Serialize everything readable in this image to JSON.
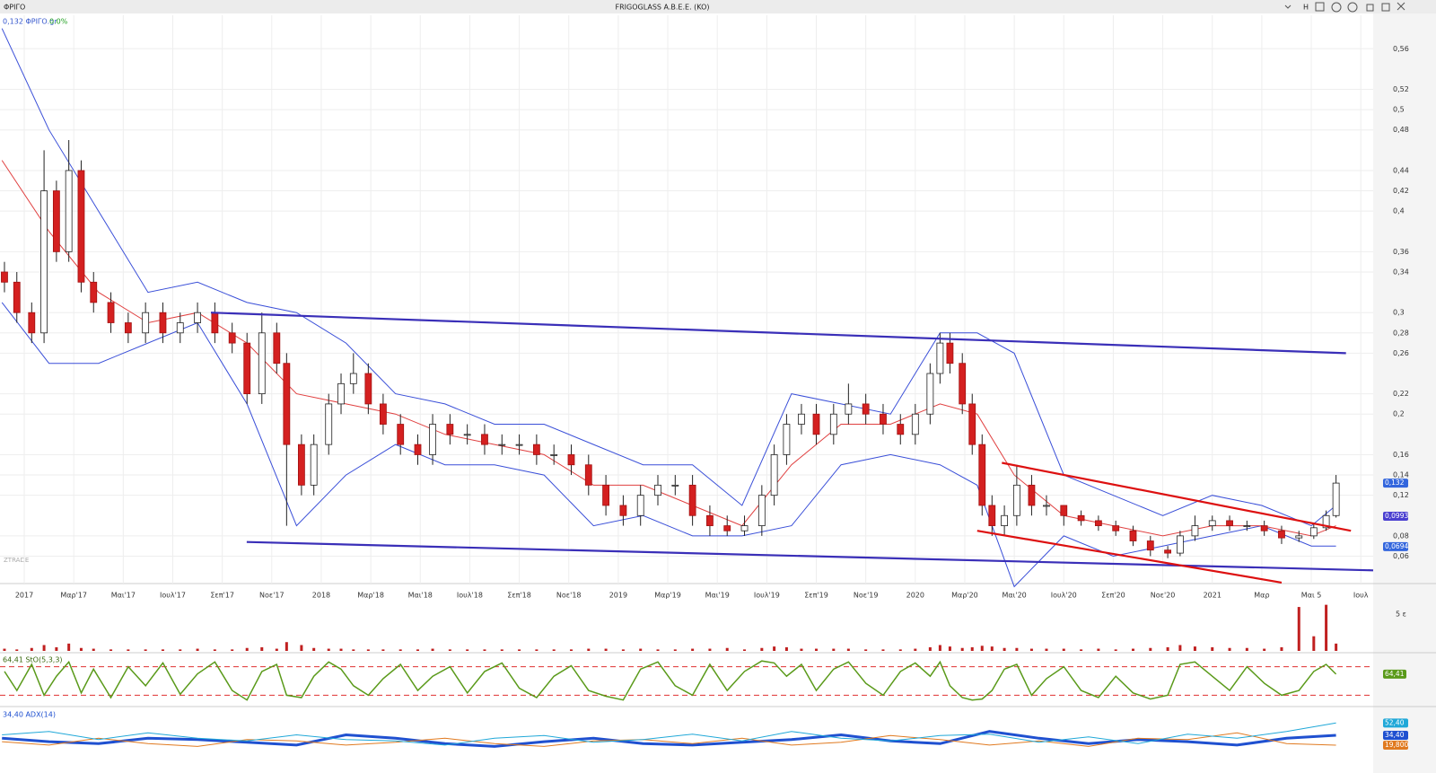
{
  "window": {
    "symbol": "ΦΡΙΓΟ",
    "title": "FRIGOGLASS A.B.E.E. (KO)",
    "watermark": "ZTRADE",
    "button": "H"
  },
  "chart_data": [
    {
      "type": "candlestick",
      "legend": "0,132 ΦΡΙΓΟ.gr",
      "change": "0.0%",
      "x": [
        -0.8,
        -0.3,
        0.3,
        0.8,
        1.3,
        1.8,
        2.3,
        2.8,
        3.5,
        4.2,
        4.9,
        5.6,
        6.3,
        7.0,
        7.7,
        8.4,
        9.0,
        9.6,
        10.2,
        10.6,
        11.2,
        11.7,
        12.3,
        12.8,
        13.3,
        13.9,
        14.5,
        15.2,
        15.9,
        16.5,
        17.2,
        17.9,
        18.6,
        19.3,
        20.0,
        20.7,
        21.4,
        22.1,
        22.8,
        23.5,
        24.2,
        24.9,
        25.6,
        26.3,
        27.0,
        27.7,
        28.4,
        29.1,
        29.8,
        30.3,
        30.8,
        31.4,
        32.0,
        32.7,
        33.3,
        34.0,
        34.7,
        35.4,
        36.0,
        36.6,
        37.0,
        37.4,
        37.9,
        38.3,
        38.7,
        39.1,
        39.6,
        40.1,
        40.7,
        41.3,
        42.0,
        42.7,
        43.4,
        44.1,
        44.8,
        45.5,
        46.2,
        46.7,
        47.3,
        48.0,
        48.7,
        49.4,
        50.1,
        50.8,
        51.5,
        52.1,
        52.6,
        53.0
      ],
      "open": [
        0.34,
        0.33,
        0.3,
        0.28,
        0.42,
        0.36,
        0.44,
        0.33,
        0.31,
        0.29,
        0.28,
        0.3,
        0.28,
        0.29,
        0.3,
        0.28,
        0.27,
        0.22,
        0.28,
        0.25,
        0.17,
        0.13,
        0.17,
        0.21,
        0.23,
        0.24,
        0.21,
        0.19,
        0.17,
        0.16,
        0.19,
        0.18,
        0.18,
        0.17,
        0.17,
        0.17,
        0.16,
        0.16,
        0.15,
        0.13,
        0.11,
        0.1,
        0.12,
        0.13,
        0.13,
        0.1,
        0.09,
        0.085,
        0.09,
        0.12,
        0.16,
        0.19,
        0.2,
        0.18,
        0.2,
        0.21,
        0.2,
        0.19,
        0.18,
        0.2,
        0.24,
        0.27,
        0.25,
        0.21,
        0.17,
        0.11,
        0.09,
        0.1,
        0.13,
        0.11,
        0.11,
        0.1,
        0.095,
        0.09,
        0.085,
        0.075,
        0.066,
        0.063,
        0.08,
        0.09,
        0.095,
        0.09,
        0.09,
        0.085,
        0.078,
        0.08,
        0.088,
        0.1
      ],
      "high": [
        0.35,
        0.34,
        0.31,
        0.46,
        0.43,
        0.47,
        0.45,
        0.34,
        0.32,
        0.3,
        0.31,
        0.31,
        0.3,
        0.31,
        0.31,
        0.29,
        0.28,
        0.3,
        0.29,
        0.26,
        0.18,
        0.18,
        0.22,
        0.24,
        0.26,
        0.25,
        0.22,
        0.2,
        0.18,
        0.2,
        0.2,
        0.19,
        0.19,
        0.18,
        0.18,
        0.18,
        0.17,
        0.17,
        0.16,
        0.14,
        0.12,
        0.13,
        0.14,
        0.14,
        0.14,
        0.11,
        0.1,
        0.1,
        0.13,
        0.17,
        0.2,
        0.21,
        0.21,
        0.21,
        0.23,
        0.22,
        0.21,
        0.2,
        0.21,
        0.25,
        0.28,
        0.28,
        0.26,
        0.22,
        0.18,
        0.12,
        0.11,
        0.15,
        0.14,
        0.12,
        0.11,
        0.105,
        0.1,
        0.095,
        0.09,
        0.08,
        0.07,
        0.085,
        0.1,
        0.1,
        0.1,
        0.095,
        0.095,
        0.09,
        0.085,
        0.092,
        0.105,
        0.14
      ],
      "low": [
        0.32,
        0.29,
        0.27,
        0.27,
        0.35,
        0.35,
        0.32,
        0.3,
        0.28,
        0.27,
        0.27,
        0.27,
        0.27,
        0.28,
        0.27,
        0.26,
        0.21,
        0.21,
        0.24,
        0.09,
        0.12,
        0.12,
        0.16,
        0.2,
        0.22,
        0.2,
        0.18,
        0.16,
        0.15,
        0.15,
        0.17,
        0.17,
        0.16,
        0.16,
        0.16,
        0.15,
        0.15,
        0.14,
        0.12,
        0.1,
        0.09,
        0.09,
        0.11,
        0.12,
        0.09,
        0.08,
        0.08,
        0.08,
        0.08,
        0.11,
        0.15,
        0.18,
        0.17,
        0.17,
        0.19,
        0.19,
        0.18,
        0.17,
        0.17,
        0.19,
        0.23,
        0.24,
        0.2,
        0.16,
        0.1,
        0.08,
        0.08,
        0.09,
        0.1,
        0.1,
        0.09,
        0.09,
        0.085,
        0.08,
        0.07,
        0.06,
        0.058,
        0.06,
        0.075,
        0.085,
        0.085,
        0.085,
        0.08,
        0.072,
        0.074,
        0.077,
        0.085,
        0.098
      ],
      "close": [
        0.33,
        0.3,
        0.28,
        0.42,
        0.36,
        0.44,
        0.33,
        0.31,
        0.29,
        0.28,
        0.3,
        0.28,
        0.29,
        0.3,
        0.28,
        0.27,
        0.22,
        0.28,
        0.25,
        0.17,
        0.13,
        0.17,
        0.21,
        0.23,
        0.24,
        0.21,
        0.19,
        0.17,
        0.16,
        0.19,
        0.18,
        0.18,
        0.17,
        0.17,
        0.17,
        0.16,
        0.16,
        0.15,
        0.13,
        0.11,
        0.1,
        0.12,
        0.13,
        0.13,
        0.1,
        0.09,
        0.085,
        0.09,
        0.12,
        0.16,
        0.19,
        0.2,
        0.18,
        0.2,
        0.21,
        0.2,
        0.19,
        0.18,
        0.2,
        0.24,
        0.27,
        0.25,
        0.21,
        0.17,
        0.11,
        0.09,
        0.1,
        0.13,
        0.11,
        0.11,
        0.1,
        0.095,
        0.09,
        0.085,
        0.075,
        0.066,
        0.063,
        0.08,
        0.09,
        0.095,
        0.09,
        0.09,
        0.085,
        0.078,
        0.08,
        0.088,
        0.1,
        0.132
      ],
      "up_color": "#ffffff",
      "down_color": "#d42020",
      "xlim": [
        -0.98,
        54.5
      ],
      "xticks": [
        {
          "value": 0,
          "label": "2017"
        },
        {
          "value": 2,
          "label": "Μαρ'17"
        },
        {
          "value": 4,
          "label": "Μαι'17"
        },
        {
          "value": 6,
          "label": "Ιουλ'17"
        },
        {
          "value": 8,
          "label": "Σεπ'17"
        },
        {
          "value": 10,
          "label": "Νοε'17"
        },
        {
          "value": 12,
          "label": "2018"
        },
        {
          "value": 14,
          "label": "Μαρ'18"
        },
        {
          "value": 16,
          "label": "Μαι'18"
        },
        {
          "value": 18,
          "label": "Ιουλ'18"
        },
        {
          "value": 20,
          "label": "Σεπ'18"
        },
        {
          "value": 22,
          "label": "Νοε'18"
        },
        {
          "value": 24,
          "label": "2019"
        },
        {
          "value": 26,
          "label": "Μαρ'19"
        },
        {
          "value": 28,
          "label": "Μαι'19"
        },
        {
          "value": 30,
          "label": "Ιουλ'19"
        },
        {
          "value": 32,
          "label": "Σεπ'19"
        },
        {
          "value": 34,
          "label": "Νοε'19"
        },
        {
          "value": 36,
          "label": "2020"
        },
        {
          "value": 38,
          "label": "Μαρ'20"
        },
        {
          "value": 40,
          "label": "Μαι'20"
        },
        {
          "value": 42,
          "label": "Ιουλ'20"
        },
        {
          "value": 44,
          "label": "Σεπ'20"
        },
        {
          "value": 46,
          "label": "Νοε'20"
        },
        {
          "value": 48,
          "label": "2021"
        },
        {
          "value": 50,
          "label": "Μαρ"
        },
        {
          "value": 52,
          "label": "Μαι 5"
        },
        {
          "value": 54,
          "label": "Ιουλ"
        }
      ],
      "ylim": [
        0.033,
        0.593
      ],
      "yticks": [
        {
          "value": 0.06,
          "label": "0,06"
        },
        {
          "value": 0.08,
          "label": "0,08"
        },
        {
          "value": 0.12,
          "label": "0,12"
        },
        {
          "value": 0.14,
          "label": "0,14"
        },
        {
          "value": 0.16,
          "label": "0,16"
        },
        {
          "value": 0.2,
          "label": "0,2"
        },
        {
          "value": 0.22,
          "label": "0,22"
        },
        {
          "value": 0.26,
          "label": "0,26"
        },
        {
          "value": 0.28,
          "label": "0,28"
        },
        {
          "value": 0.3,
          "label": "0,3"
        },
        {
          "value": 0.34,
          "label": "0,34"
        },
        {
          "value": 0.36,
          "label": "0,36"
        },
        {
          "value": 0.4,
          "label": "0,4"
        },
        {
          "value": 0.42,
          "label": "0,42"
        },
        {
          "value": 0.44,
          "label": "0,44"
        },
        {
          "value": 0.48,
          "label": "0,48"
        },
        {
          "value": 0.5,
          "label": "0,5"
        },
        {
          "value": 0.52,
          "label": "0,52"
        },
        {
          "value": 0.56,
          "label": "0,56"
        }
      ],
      "grid": true,
      "bands": {
        "x": [
          -0.9,
          1,
          3,
          5,
          7,
          9,
          11,
          13,
          15,
          17,
          19,
          21,
          23,
          25,
          27,
          29,
          31,
          33,
          35,
          37,
          38.5,
          40,
          42,
          44,
          46,
          48,
          50,
          52,
          53
        ],
        "upper": [
          0.58,
          0.48,
          0.4,
          0.32,
          0.33,
          0.31,
          0.3,
          0.27,
          0.22,
          0.21,
          0.19,
          0.19,
          0.17,
          0.15,
          0.15,
          0.11,
          0.22,
          0.21,
          0.2,
          0.28,
          0.28,
          0.26,
          0.14,
          0.12,
          0.1,
          0.12,
          0.11,
          0.09,
          0.11
        ],
        "middle": [
          0.45,
          0.38,
          0.32,
          0.29,
          0.3,
          0.27,
          0.22,
          0.21,
          0.2,
          0.18,
          0.17,
          0.16,
          0.13,
          0.13,
          0.11,
          0.09,
          0.15,
          0.19,
          0.19,
          0.21,
          0.2,
          0.14,
          0.1,
          0.09,
          0.08,
          0.09,
          0.09,
          0.08,
          0.09
        ],
        "lower": [
          0.31,
          0.25,
          0.25,
          0.27,
          0.29,
          0.21,
          0.09,
          0.14,
          0.17,
          0.15,
          0.15,
          0.14,
          0.09,
          0.1,
          0.08,
          0.08,
          0.09,
          0.15,
          0.16,
          0.15,
          0.13,
          0.03,
          0.08,
          0.06,
          0.07,
          0.08,
          0.09,
          0.07,
          0.07
        ],
        "band_color": "#3a4fd8",
        "middle_color": "#e04040"
      },
      "trendlines": [
        {
          "color": "#3a2fb8",
          "x": [
            7.54,
            53.4
          ],
          "y": [
            0.3,
            0.26
          ]
        },
        {
          "color": "#3a2fb8",
          "x": [
            8.99,
            54.5
          ],
          "y": [
            0.074,
            0.046
          ]
        },
        {
          "color": "#dd1010",
          "x": [
            39.5,
            53.6
          ],
          "y": [
            0.152,
            0.085
          ]
        },
        {
          "color": "#dd1010",
          "x": [
            38.5,
            50.8
          ],
          "y": [
            0.085,
            0.034
          ]
        }
      ],
      "price_labels": [
        {
          "value": 0.132,
          "label": "0,132",
          "color": "#3366dd"
        },
        {
          "value": 0.0993,
          "label": "0,0993",
          "color": "#4a3fd0"
        },
        {
          "value": 0.0694,
          "label": "0,0694",
          "color": "#3366dd"
        }
      ]
    },
    {
      "type": "bar",
      "color": "#c02020",
      "values": [
        0.3,
        0.2,
        0.4,
        0.8,
        0.5,
        1.0,
        0.4,
        0.3,
        0.2,
        0.2,
        0.2,
        0.2,
        0.2,
        0.3,
        0.2,
        0.2,
        0.4,
        0.5,
        0.3,
        1.2,
        0.8,
        0.4,
        0.3,
        0.3,
        0.2,
        0.2,
        0.2,
        0.2,
        0.2,
        0.3,
        0.2,
        0.2,
        0.2,
        0.2,
        0.2,
        0.2,
        0.2,
        0.2,
        0.3,
        0.3,
        0.2,
        0.3,
        0.2,
        0.2,
        0.3,
        0.3,
        0.4,
        0.2,
        0.4,
        0.6,
        0.5,
        0.3,
        0.3,
        0.3,
        0.3,
        0.2,
        0.2,
        0.2,
        0.3,
        0.5,
        0.8,
        0.6,
        0.4,
        0.5,
        0.7,
        0.6,
        0.4,
        0.4,
        0.3,
        0.3,
        0.3,
        0.2,
        0.3,
        0.2,
        0.3,
        0.4,
        0.5,
        0.8,
        0.6,
        0.5,
        0.4,
        0.4,
        0.3,
        0.5,
        6.0,
        2.0,
        6.3,
        1.0
      ],
      "ylim": [
        0,
        6.5
      ],
      "yticks": [
        {
          "value": 5,
          "label": "5 ε"
        }
      ]
    },
    {
      "type": "line",
      "title": "64,41 StO(5,3,3)",
      "color": "#5a9a1a",
      "values": [
        70,
        30,
        85,
        20,
        60,
        90,
        25,
        75,
        15,
        80,
        40,
        88,
        22,
        65,
        90,
        30,
        10,
        70,
        85,
        20,
        15,
        60,
        90,
        75,
        40,
        20,
        55,
        85,
        30,
        60,
        80,
        25,
        70,
        88,
        35,
        15,
        60,
        82,
        30,
        18,
        10,
        75,
        90,
        40,
        20,
        85,
        30,
        70,
        92,
        88,
        60,
        85,
        30,
        75,
        90,
        45,
        20,
        70,
        88,
        60,
        90,
        40,
        15,
        10,
        12,
        30,
        75,
        85,
        20,
        55,
        80,
        30,
        15,
        60,
        25,
        12,
        20,
        85,
        90,
        60,
        30,
        80,
        45,
        20,
        30,
        70,
        85,
        64.41
      ],
      "ylim": [
        0,
        100
      ],
      "levels": [
        20,
        80
      ],
      "level_color": "#e03030",
      "last_label": "64,41"
    },
    {
      "type": "line",
      "title": "34,40 ADX(14)",
      "x": [
        -0.9,
        1,
        3,
        5,
        7,
        9,
        11,
        13,
        15,
        17,
        19,
        21,
        23,
        25,
        27,
        29,
        31,
        33,
        35,
        37,
        39,
        41,
        43,
        45,
        47,
        49,
        51,
        53
      ],
      "ylim": [
        0,
        70
      ],
      "series": [
        {
          "color": "#1f50d0",
          "width": 3,
          "last_label": "34,40",
          "values": [
            30,
            25,
            22,
            30,
            28,
            24,
            20,
            35,
            30,
            22,
            18,
            25,
            30,
            22,
            20,
            24,
            28,
            35,
            26,
            22,
            40,
            30,
            22,
            28,
            25,
            20,
            30,
            34.4
          ]
        },
        {
          "color": "#e07a20",
          "width": 1,
          "last_label": "19,800",
          "values": [
            25,
            20,
            30,
            22,
            18,
            28,
            26,
            20,
            24,
            30,
            22,
            18,
            26,
            28,
            22,
            30,
            20,
            24,
            34,
            28,
            20,
            26,
            18,
            30,
            28,
            38,
            22,
            19.8
          ]
        },
        {
          "color": "#20a8d8",
          "width": 1,
          "last_label": "52,40",
          "values": [
            35,
            40,
            28,
            38,
            30,
            26,
            35,
            28,
            26,
            20,
            30,
            34,
            24,
            28,
            36,
            26,
            40,
            30,
            26,
            34,
            36,
            24,
            32,
            22,
            36,
            30,
            40,
            52.4
          ]
        }
      ]
    }
  ]
}
